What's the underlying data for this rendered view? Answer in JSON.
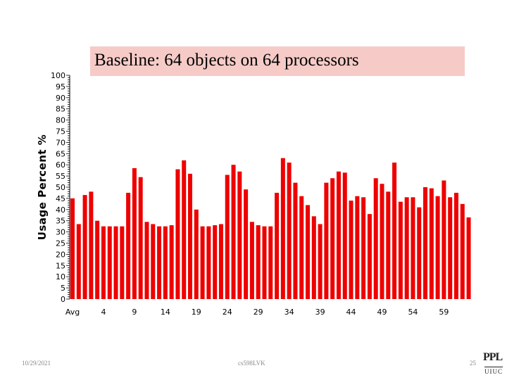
{
  "slide": {
    "title": "Baseline: 64 objects on 64 processors",
    "date": "10/29/2021",
    "center": "cs598LVK",
    "page": "25",
    "logo_top": "PPL",
    "logo_bottom": "UIUC"
  },
  "chart_data": {
    "type": "bar",
    "title": "Baseline: 64 objects on 64 processors",
    "xlabel": "",
    "ylabel": "Usage Percent %",
    "ylim": [
      0,
      100
    ],
    "y_ticks": [
      0,
      5,
      10,
      15,
      20,
      25,
      30,
      35,
      40,
      45,
      50,
      55,
      60,
      65,
      70,
      75,
      80,
      85,
      90,
      95,
      100
    ],
    "x_tick_labels": [
      "Avg",
      "4",
      "9",
      "14",
      "19",
      "24",
      "29",
      "34",
      "39",
      "44",
      "49",
      "54",
      "59"
    ],
    "x_tick_positions": [
      0,
      4,
      9,
      14,
      19,
      24,
      29,
      34,
      39,
      44,
      49,
      54,
      59
    ],
    "bar_color": "#ee0000",
    "categories": [
      "Avg",
      "0",
      "1",
      "2",
      "3",
      "4",
      "5",
      "6",
      "7",
      "8",
      "9",
      "10",
      "11",
      "12",
      "13",
      "14",
      "15",
      "16",
      "17",
      "18",
      "19",
      "20",
      "21",
      "22",
      "23",
      "24",
      "25",
      "26",
      "27",
      "28",
      "29",
      "30",
      "31",
      "32",
      "33",
      "34",
      "35",
      "36",
      "37",
      "38",
      "39",
      "40",
      "41",
      "42",
      "43",
      "44",
      "45",
      "46",
      "47",
      "48",
      "49",
      "50",
      "51",
      "52",
      "53",
      "54",
      "55",
      "56",
      "57",
      "58",
      "59",
      "60",
      "61",
      "62",
      "63"
    ],
    "values": [
      45,
      33.5,
      46.5,
      48,
      35,
      32.5,
      32.5,
      32.5,
      32.5,
      47.5,
      58.5,
      54.5,
      34.5,
      33.5,
      32.5,
      32.5,
      33,
      58,
      62,
      56,
      40,
      32.5,
      32.5,
      33,
      33.5,
      55.5,
      60,
      57,
      49,
      34.5,
      33,
      32.5,
      32.5,
      47.5,
      63,
      61,
      52,
      46,
      42,
      37,
      33.5,
      52,
      54,
      57,
      56.5,
      44,
      46,
      45.5,
      38,
      54,
      51.5,
      48,
      61,
      43.5,
      45.5,
      45.5,
      41,
      50,
      49.5,
      46,
      53,
      45.5,
      47.5,
      42.5,
      36.5
    ]
  }
}
